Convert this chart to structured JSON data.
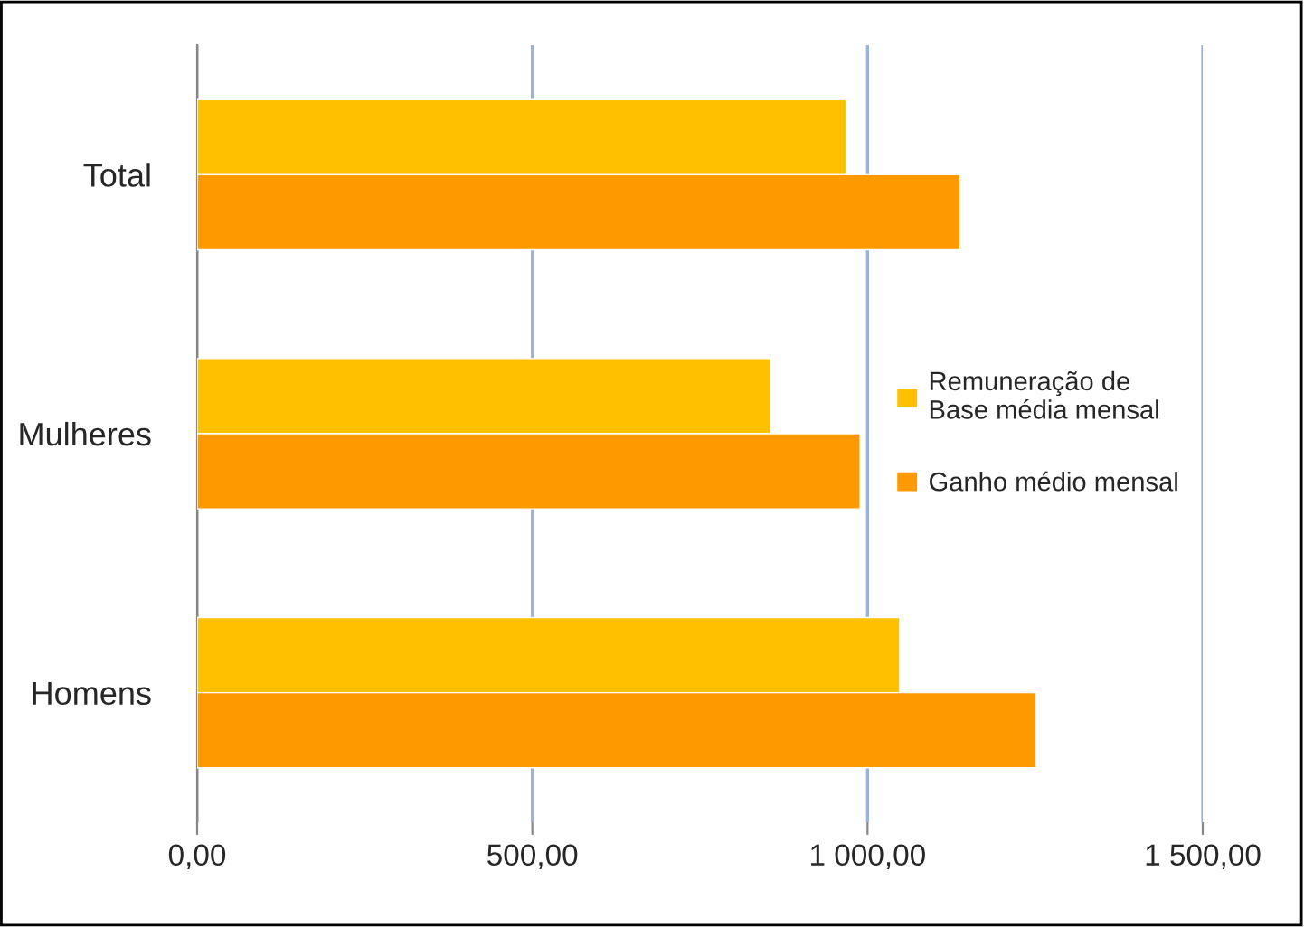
{
  "chart_data": {
    "type": "bar",
    "orientation": "horizontal",
    "categories": [
      "Total",
      "Mulheres",
      "Homens"
    ],
    "series": [
      {
        "name": "Remuneração de\nBase média mensal",
        "color": "#ffc000",
        "values": [
          968,
          856,
          1048
        ]
      },
      {
        "name": "Ganho médio mensal",
        "color": "#ff9900",
        "values": [
          1138,
          989,
          1251
        ]
      }
    ],
    "xlim": [
      0,
      1500
    ],
    "xticks": [
      {
        "value": 0,
        "label": "0,00"
      },
      {
        "value": 500,
        "label": "500,00"
      },
      {
        "value": 1000,
        "label": "1 000,00"
      },
      {
        "value": 1500,
        "label": "1 500,00"
      }
    ],
    "grid": "x",
    "legend": "right"
  }
}
